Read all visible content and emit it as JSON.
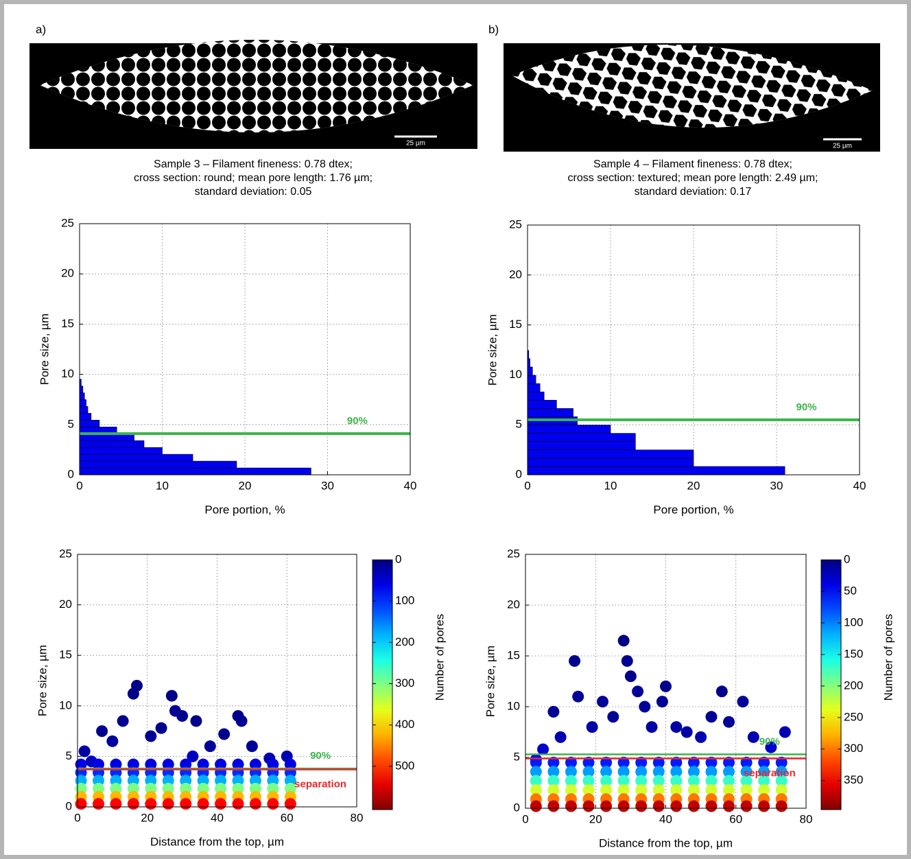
{
  "figures": [
    {
      "label": "a)",
      "scale_bar": "25 µm",
      "caption": [
        "Sample 3 – Filament fineness: 0.78 dtex;",
        "cross section: round; mean pore length: 1.76 µm;",
        "standard deviation: 0.05"
      ]
    },
    {
      "label": "b)",
      "scale_bar": "25 µm",
      "caption": [
        "Sample 4 – Filament fineness: 0.78 dtex;",
        "cross section: textured; mean pore length: 2.49 µm;",
        "standard deviation: 0.17"
      ]
    }
  ],
  "chart_data": [
    {
      "type": "histogram",
      "orientation": "horizontal",
      "xlabel": "Pore portion, %",
      "ylabel": "Pore size, µm",
      "color": "#0000ee",
      "bins": [
        0,
        0.68,
        1.36,
        2.04,
        2.72,
        3.4,
        4.08,
        4.76,
        5.44,
        6.12,
        6.8,
        7.48,
        8.16,
        8.84,
        9.52
      ],
      "values": [
        28,
        19,
        13.7,
        10,
        7.8,
        6.6,
        4.5,
        2.4,
        1.4,
        1.0,
        0.8,
        0.6,
        0.4,
        0.2
      ],
      "lines": [
        {
          "value": 4.1,
          "color": "#3cb44b",
          "label": "90%"
        }
      ],
      "xlim": [
        0,
        40
      ],
      "xticks": [
        0,
        10,
        20,
        30,
        40
      ],
      "ylim": [
        0,
        25
      ],
      "yticks": [
        0,
        5,
        10,
        15,
        20,
        25
      ],
      "grid": true
    },
    {
      "type": "histogram",
      "orientation": "horizontal",
      "xlabel": "Pore portion, %",
      "ylabel": "Pore size, µm",
      "color": "#0000ee",
      "bins": [
        0,
        0.83,
        1.66,
        2.49,
        3.32,
        4.15,
        4.98,
        5.81,
        6.64,
        7.47,
        8.3,
        9.13,
        9.96,
        10.79,
        11.62,
        12.45
      ],
      "values": [
        31,
        20,
        20,
        13,
        13,
        10,
        6,
        5.5,
        3.5,
        2.0,
        1.5,
        1.0,
        0.6,
        0.3,
        0.15
      ],
      "lines": [
        {
          "value": 5.5,
          "color": "#3cb44b",
          "label": "90%"
        }
      ],
      "xlim": [
        0,
        40
      ],
      "xticks": [
        0,
        10,
        20,
        30,
        40
      ],
      "ylim": [
        0,
        25
      ],
      "yticks": [
        0,
        5,
        10,
        15,
        20,
        25
      ],
      "grid": true
    },
    {
      "type": "scatter",
      "xlabel": "Distance from the top, µm",
      "ylabel": "Pore size, µm",
      "x": [
        2,
        7,
        10,
        13,
        17,
        16,
        21,
        24,
        27,
        28,
        30,
        34,
        38,
        42,
        46,
        47,
        50,
        55,
        60,
        4,
        33,
        1,
        6,
        11,
        16,
        21,
        26,
        31,
        36,
        41,
        46,
        51,
        56,
        61,
        1,
        6,
        11,
        16,
        21,
        26,
        31,
        36,
        41,
        46,
        51,
        56,
        61,
        1,
        6,
        11,
        16,
        21,
        26,
        31,
        36,
        41,
        46,
        51,
        56,
        61,
        1,
        6,
        11,
        16,
        21,
        26,
        31,
        36,
        41,
        46,
        51,
        56,
        61,
        1,
        6,
        11,
        16,
        21,
        26,
        31,
        36,
        41,
        46,
        51,
        56,
        61,
        1,
        6,
        11,
        16,
        21,
        26,
        31,
        36,
        41,
        46,
        51,
        56,
        61
      ],
      "y": [
        5.5,
        7.5,
        6.5,
        8.5,
        12,
        11.2,
        7,
        7.8,
        11,
        9.5,
        9,
        8.5,
        6,
        7.2,
        9,
        8.5,
        6,
        4.8,
        5,
        4.5,
        5,
        4.2,
        4.2,
        4.2,
        4.2,
        4.2,
        4.2,
        4.2,
        4.2,
        4.2,
        4.2,
        4.2,
        4.2,
        4.2,
        3.4,
        3.4,
        3.4,
        3.4,
        3.4,
        3.4,
        3.4,
        3.4,
        3.4,
        3.4,
        3.4,
        3.4,
        3.4,
        2.6,
        2.6,
        2.6,
        2.6,
        2.6,
        2.6,
        2.6,
        2.6,
        2.6,
        2.6,
        2.6,
        2.6,
        2.6,
        1.8,
        1.8,
        1.8,
        1.8,
        1.8,
        1.8,
        1.8,
        1.8,
        1.8,
        1.8,
        1.8,
        1.8,
        1.8,
        1.0,
        1.0,
        1.0,
        1.0,
        1.0,
        1.0,
        1.0,
        1.0,
        1.0,
        1.0,
        1.0,
        1.0,
        1.0,
        0.3,
        0.3,
        0.3,
        0.3,
        0.3,
        0.3,
        0.3,
        0.3,
        0.3,
        0.3,
        0.3,
        0.3,
        0.3
      ],
      "c": [
        20,
        10,
        20,
        10,
        5,
        5,
        15,
        10,
        5,
        10,
        10,
        5,
        15,
        10,
        5,
        10,
        15,
        30,
        30,
        40,
        40,
        60,
        60,
        60,
        60,
        60,
        60,
        60,
        60,
        60,
        60,
        60,
        60,
        60,
        100,
        100,
        100,
        100,
        100,
        100,
        100,
        100,
        100,
        100,
        100,
        100,
        100,
        180,
        180,
        180,
        180,
        180,
        180,
        180,
        180,
        180,
        180,
        180,
        180,
        180,
        300,
        300,
        300,
        300,
        300,
        300,
        300,
        300,
        300,
        300,
        300,
        300,
        300,
        420,
        420,
        420,
        420,
        420,
        420,
        420,
        420,
        420,
        420,
        420,
        420,
        420,
        530,
        530,
        530,
        530,
        530,
        530,
        530,
        530,
        530,
        530,
        530,
        530,
        530
      ],
      "lines": [
        {
          "value": 3.8,
          "color": "#3cb44b",
          "label": "90%"
        },
        {
          "value": 3.7,
          "color": "#e8282b",
          "label": "separation"
        }
      ],
      "colorbar": {
        "label": "Number of pores",
        "colormap": "jet",
        "lim": [
          0,
          605
        ],
        "ticks": [
          0,
          100,
          200,
          300,
          400,
          500
        ]
      },
      "xlim": [
        0,
        80
      ],
      "xticks": [
        0,
        20,
        40,
        60,
        80
      ],
      "ylim": [
        0,
        25
      ],
      "yticks": [
        0,
        5,
        10,
        15,
        20,
        25
      ],
      "grid": true
    },
    {
      "type": "scatter",
      "xlabel": "Distance from the top, µm",
      "ylabel": "Pore size, µm",
      "x": [
        5,
        8,
        10,
        14,
        15,
        19,
        22,
        25,
        28,
        29,
        30,
        32,
        34,
        36,
        39,
        40,
        43,
        46,
        50,
        53,
        56,
        58,
        62,
        65,
        70,
        74,
        3,
        3,
        8,
        13,
        18,
        23,
        28,
        33,
        38,
        43,
        48,
        53,
        58,
        63,
        68,
        73,
        3,
        8,
        13,
        18,
        23,
        28,
        33,
        38,
        43,
        48,
        53,
        58,
        63,
        68,
        73,
        3,
        8,
        13,
        18,
        23,
        28,
        33,
        38,
        43,
        48,
        53,
        58,
        63,
        68,
        73,
        3,
        8,
        13,
        18,
        23,
        28,
        33,
        38,
        43,
        48,
        53,
        58,
        63,
        68,
        73,
        3,
        8,
        13,
        18,
        23,
        28,
        33,
        38,
        43,
        48,
        53,
        58,
        63,
        68,
        73,
        3,
        8,
        13,
        18,
        23,
        28,
        33,
        38,
        43,
        48,
        53,
        58,
        63,
        68,
        73
      ],
      "y": [
        5.8,
        9.5,
        7,
        14.5,
        11,
        8,
        10.5,
        9,
        16.5,
        14.5,
        13,
        11.5,
        10,
        8,
        10.5,
        12,
        8,
        7.5,
        7,
        9,
        11.5,
        8.5,
        10.5,
        7,
        6,
        7.5,
        4.8,
        4.5,
        4.5,
        4.5,
        4.5,
        4.5,
        4.5,
        4.5,
        4.5,
        4.5,
        4.5,
        4.5,
        4.5,
        4.5,
        4.5,
        4.5,
        3.6,
        3.6,
        3.6,
        3.6,
        3.6,
        3.6,
        3.6,
        3.6,
        3.6,
        3.6,
        3.6,
        3.6,
        3.6,
        3.6,
        3.6,
        2.7,
        2.7,
        2.7,
        2.7,
        2.7,
        2.7,
        2.7,
        2.7,
        2.7,
        2.7,
        2.7,
        2.7,
        2.7,
        2.7,
        2.7,
        1.8,
        1.8,
        1.8,
        1.8,
        1.8,
        1.8,
        1.8,
        1.8,
        1.8,
        1.8,
        1.8,
        1.8,
        1.8,
        1.8,
        1.8,
        0.9,
        0.9,
        0.9,
        0.9,
        0.9,
        0.9,
        0.9,
        0.9,
        0.9,
        0.9,
        0.9,
        0.9,
        0.9,
        0.9,
        0.9,
        0.2,
        0.2,
        0.2,
        0.2,
        0.2,
        0.2,
        0.2,
        0.2,
        0.2,
        0.2,
        0.2,
        0.2,
        0.2,
        0.2,
        0.2
      ],
      "c": [
        30,
        10,
        20,
        5,
        10,
        15,
        10,
        10,
        2,
        5,
        5,
        10,
        10,
        15,
        10,
        5,
        15,
        15,
        20,
        10,
        5,
        10,
        10,
        20,
        30,
        20,
        50,
        60,
        60,
        60,
        60,
        60,
        60,
        60,
        60,
        60,
        60,
        60,
        60,
        60,
        60,
        60,
        110,
        110,
        110,
        110,
        110,
        110,
        110,
        110,
        110,
        110,
        110,
        110,
        110,
        110,
        110,
        170,
        170,
        170,
        170,
        170,
        170,
        170,
        170,
        170,
        170,
        170,
        170,
        170,
        170,
        170,
        230,
        230,
        230,
        230,
        230,
        230,
        230,
        230,
        230,
        230,
        230,
        230,
        230,
        230,
        230,
        300,
        300,
        300,
        300,
        300,
        300,
        300,
        300,
        300,
        300,
        300,
        300,
        300,
        300,
        300,
        370,
        370,
        370,
        370,
        370,
        370,
        370,
        370,
        370,
        370,
        370,
        370,
        370,
        370,
        370
      ],
      "lines": [
        {
          "value": 5.3,
          "color": "#3cb44b",
          "label": "90%"
        },
        {
          "value": 4.9,
          "color": "#e8282b",
          "label": "separation"
        }
      ],
      "colorbar": {
        "label": "Number of pores",
        "colormap": "jet",
        "lim": [
          0,
          396
        ],
        "ticks": [
          0,
          50,
          100,
          150,
          200,
          250,
          300,
          350
        ]
      },
      "xlim": [
        0,
        80
      ],
      "xticks": [
        0,
        20,
        40,
        60,
        80
      ],
      "ylim": [
        0,
        25
      ],
      "yticks": [
        0,
        5,
        10,
        15,
        20,
        25
      ],
      "grid": true
    }
  ]
}
